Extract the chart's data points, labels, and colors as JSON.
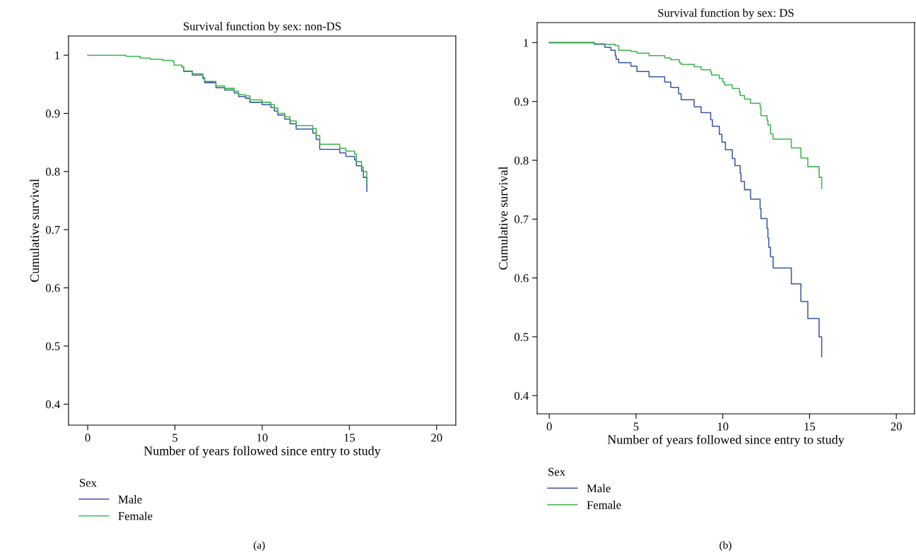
{
  "chart_data": [
    {
      "type": "step",
      "title": "Survival function by sex: non-DS",
      "xlabel": "Number of years followed since entry to study",
      "ylabel": "Cumulative survival",
      "xlim": [
        -1.1,
        21.1
      ],
      "ylim": [
        0.364,
        1.033
      ],
      "xticks": [
        0,
        5,
        10,
        15,
        20
      ],
      "yticks": [
        0.4,
        0.5,
        0.6,
        0.7,
        0.8,
        0.9,
        {
          "value": 1,
          "label": "1"
        }
      ],
      "legend": "bottom",
      "legend_title": "Sex",
      "annotations": [
        "(a)"
      ],
      "series": [
        {
          "name": "Male",
          "color": "#3a55a8",
          "x": [
            5.4,
            5.5,
            6.0,
            6.6,
            6.7,
            7.35,
            7.85,
            8.4,
            8.65,
            9.05,
            9.3,
            10.0,
            10.5,
            10.7,
            10.9,
            11.3,
            11.6,
            11.95,
            12.9,
            13.1,
            13.3,
            14.45,
            14.8,
            15.3,
            15.4,
            15.7,
            15.8,
            16.0,
            16.0
          ],
          "values": [
            0.98,
            0.972,
            0.966,
            0.96,
            0.953,
            0.944,
            0.94,
            0.935,
            0.929,
            0.926,
            0.919,
            0.915,
            0.91,
            0.904,
            0.897,
            0.89,
            0.882,
            0.873,
            0.866,
            0.855,
            0.838,
            0.832,
            0.826,
            0.82,
            0.81,
            0.801,
            0.79,
            0.779,
            0.766
          ]
        },
        {
          "name": "Female",
          "color": "#3cb54a",
          "x": [
            0,
            2.2,
            3.0,
            3.6,
            4.3,
            4.9,
            4.95,
            5.4,
            5.5,
            6.0,
            6.6,
            6.7,
            7.35,
            7.85,
            8.4,
            8.65,
            9.05,
            9.3,
            10.0,
            10.5,
            10.7,
            10.9,
            11.3,
            11.6,
            11.95,
            12.9,
            13.1,
            13.3,
            14.45,
            14.8,
            15.3,
            15.4,
            15.7,
            15.8,
            16.0,
            16.0
          ],
          "values": [
            1,
            0.998,
            0.995,
            0.993,
            0.991,
            0.989,
            0.983,
            0.98,
            0.973,
            0.968,
            0.962,
            0.955,
            0.947,
            0.943,
            0.938,
            0.932,
            0.93,
            0.923,
            0.919,
            0.915,
            0.909,
            0.9,
            0.894,
            0.887,
            0.879,
            0.874,
            0.862,
            0.847,
            0.84,
            0.835,
            0.83,
            0.817,
            0.808,
            0.8,
            0.792,
            0.779
          ]
        }
      ]
    },
    {
      "type": "step",
      "title": "Survival function by sex: DS",
      "xlabel": "Number of years followed since entry to study",
      "ylabel": "Cumulative survival",
      "xlim": [
        -0.7,
        21.05
      ],
      "ylim": [
        0.369,
        1.034
      ],
      "xticks": [
        0,
        5,
        10,
        15,
        20
      ],
      "yticks": [
        0.4,
        0.5,
        0.6,
        0.7,
        0.8,
        0.9,
        {
          "value": 1,
          "label": "1"
        }
      ],
      "legend": "bottom",
      "legend_title": "Sex",
      "annotations": [
        "(b)"
      ],
      "series": [
        {
          "name": "Male",
          "color": "#3a55a8",
          "x": [
            0,
            2.6,
            3.2,
            3.55,
            3.8,
            3.85,
            4.0,
            4.7,
            5.05,
            5.75,
            6.65,
            7.0,
            7.45,
            7.6,
            8.35,
            8.75,
            9.3,
            9.4,
            9.8,
            9.95,
            10.15,
            10.55,
            10.7,
            11.0,
            11.05,
            11.25,
            11.6,
            12.15,
            12.2,
            12.55,
            12.6,
            12.65,
            12.75,
            12.9,
            12.9,
            13.95,
            14.5,
            14.9,
            15.55,
            15.7
          ],
          "values": [
            1,
            0.997,
            0.992,
            0.987,
            0.978,
            0.972,
            0.966,
            0.96,
            0.951,
            0.942,
            0.933,
            0.924,
            0.913,
            0.903,
            0.891,
            0.881,
            0.869,
            0.858,
            0.844,
            0.831,
            0.818,
            0.803,
            0.791,
            0.778,
            0.764,
            0.75,
            0.734,
            0.718,
            0.701,
            0.684,
            0.668,
            0.652,
            0.636,
            0.62,
            0.617,
            0.59,
            0.56,
            0.531,
            0.5,
            0.466
          ]
        },
        {
          "name": "Female",
          "color": "#3cb54a",
          "x": [
            0,
            2.6,
            3.2,
            3.8,
            4.0,
            4.7,
            5.05,
            5.75,
            6.65,
            7.0,
            7.5,
            7.6,
            8.35,
            8.75,
            9.3,
            9.35,
            9.8,
            10.0,
            10.1,
            10.55,
            10.95,
            11.0,
            11.25,
            11.6,
            12.15,
            12.2,
            12.55,
            12.6,
            12.75,
            12.9,
            13.95,
            14.5,
            14.9,
            15.55,
            15.7
          ],
          "values": [
            1,
            0.998,
            0.997,
            0.995,
            0.987,
            0.985,
            0.982,
            0.978,
            0.974,
            0.971,
            0.966,
            0.963,
            0.959,
            0.954,
            0.95,
            0.945,
            0.939,
            0.933,
            0.928,
            0.922,
            0.916,
            0.91,
            0.904,
            0.897,
            0.891,
            0.876,
            0.868,
            0.86,
            0.845,
            0.836,
            0.821,
            0.804,
            0.789,
            0.771,
            0.752
          ]
        }
      ]
    }
  ]
}
